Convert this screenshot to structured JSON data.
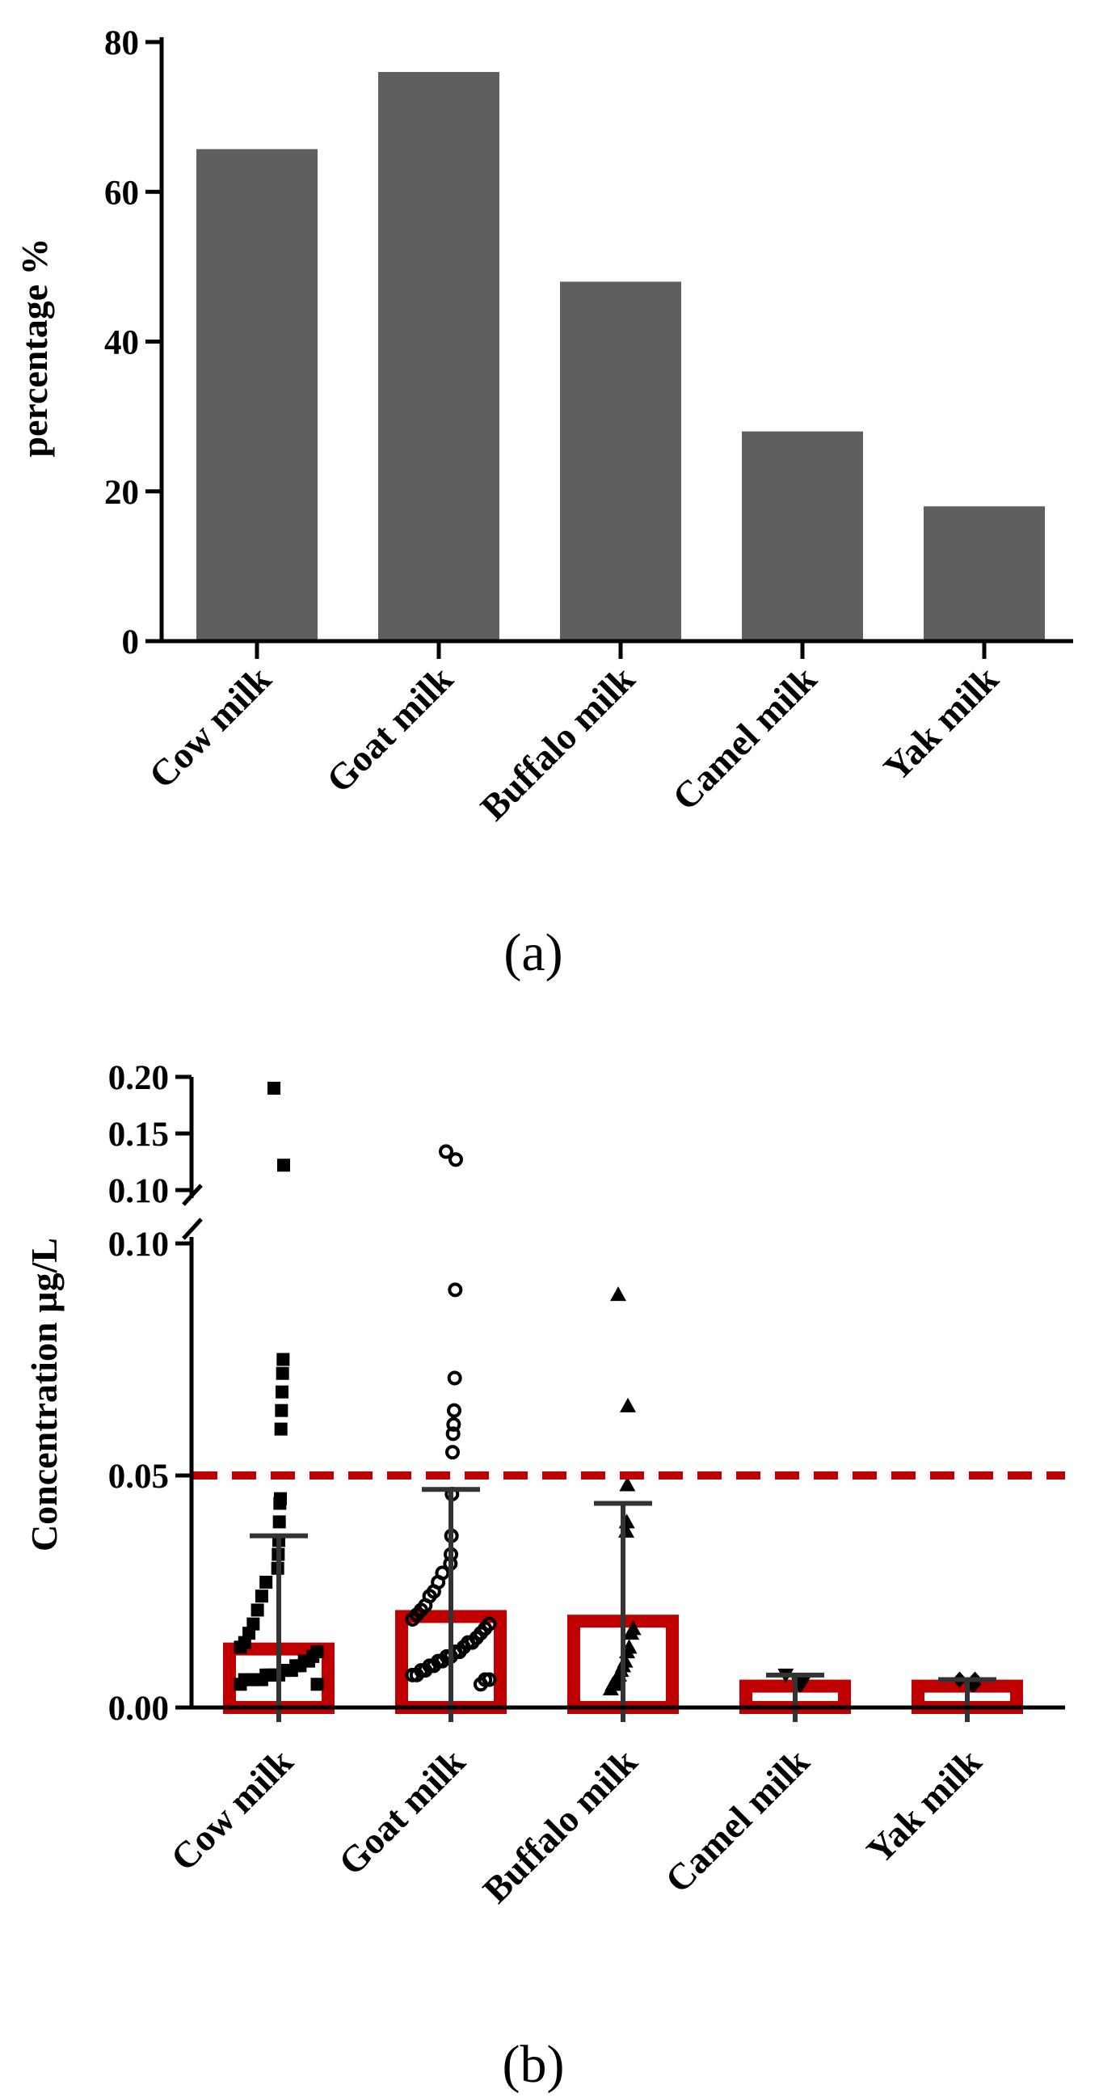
{
  "chart_data": [
    {
      "type": "bar",
      "panel": "(a)",
      "categories": [
        "Cow milk",
        "Goat milk",
        "Buffalo milk",
        "Camel milk",
        "Yak milk"
      ],
      "values": [
        65.7,
        76,
        48,
        28,
        18
      ],
      "ylabel": "percentage %",
      "xlabel": "",
      "ylim": [
        0,
        80
      ],
      "yticks": [
        "0",
        "20",
        "40",
        "60",
        "80"
      ],
      "bar_color": "#5f5f5f"
    },
    {
      "type": "bar",
      "panel": "(b)",
      "categories": [
        "Cow milk",
        "Goat milk",
        "Buffalo milk",
        "Camel milk",
        "Yak milk"
      ],
      "means": [
        0.014,
        0.021,
        0.02,
        0.006,
        0.006
      ],
      "sd_upper": [
        0.037,
        0.047,
        0.044,
        0.007,
        0.006
      ],
      "ylabel": "Concentration µg/L",
      "xlabel": "",
      "ylim_lower": [
        0,
        0.1
      ],
      "ylim_upper": [
        0.1,
        0.2
      ],
      "yticks_lower": [
        "0.00",
        "0.05",
        "0.10"
      ],
      "yticks_upper": [
        "0.10",
        "0.15",
        "0.20"
      ],
      "reference_line": 0.05,
      "bar_outline_color": "#c00000",
      "reference_line_color": "#c00000",
      "point_color": "#000000",
      "points": {
        "Cow milk": [
          0.19,
          0.122,
          0.075,
          0.072,
          0.068,
          0.064,
          0.06,
          0.045,
          0.044,
          0.04,
          0.036,
          0.033,
          0.03,
          0.027,
          0.024,
          0.021,
          0.018,
          0.016,
          0.014,
          0.013,
          0.012,
          0.011,
          0.01,
          0.01,
          0.009,
          0.009,
          0.008,
          0.008,
          0.008,
          0.007,
          0.007,
          0.007,
          0.007,
          0.006,
          0.006,
          0.006,
          0.006,
          0.006,
          0.005,
          0.005
        ],
        "Goat milk": [
          0.134,
          0.127,
          0.09,
          0.071,
          0.064,
          0.061,
          0.059,
          0.055,
          0.046,
          0.037,
          0.033,
          0.031,
          0.029,
          0.027,
          0.025,
          0.024,
          0.022,
          0.021,
          0.02,
          0.019,
          0.018,
          0.017,
          0.016,
          0.015,
          0.014,
          0.014,
          0.013,
          0.012,
          0.012,
          0.011,
          0.011,
          0.01,
          0.01,
          0.009,
          0.009,
          0.008,
          0.008,
          0.007,
          0.007,
          0.006,
          0.006,
          0.005
        ],
        "Buffalo milk": [
          0.089,
          0.065,
          0.048,
          0.04,
          0.038,
          0.017,
          0.016,
          0.013,
          0.012,
          0.01,
          0.009,
          0.008,
          0.007,
          0.006,
          0.005,
          0.005,
          0.004
        ],
        "Camel milk": [
          0.007,
          0.006,
          0.006,
          0.006,
          0.005,
          0.005,
          0.005
        ],
        "Yak milk": [
          0.006,
          0.006,
          0.005,
          0.005,
          0.005
        ]
      }
    }
  ],
  "labels": {
    "panel_a": "(a)",
    "panel_b": "(b)"
  }
}
